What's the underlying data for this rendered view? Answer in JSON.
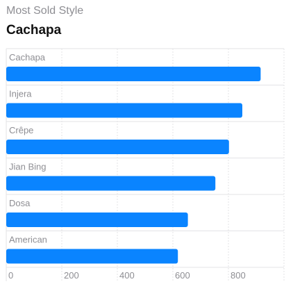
{
  "header": {
    "subtitle": "Most Sold Style",
    "title": "Cachapa"
  },
  "colors": {
    "bar": "#0a84ff",
    "grid": "#e3e3e6",
    "label": "#8e8e93"
  },
  "chart_data": {
    "type": "bar",
    "orientation": "horizontal",
    "title": "",
    "xlabel": "",
    "ylabel": "",
    "categories": [
      "Cachapa",
      "Injera",
      "Crêpe",
      "Jian Bing",
      "Dosa",
      "American"
    ],
    "values": [
      916,
      850,
      802,
      753,
      654,
      618
    ],
    "xlim": [
      0,
      1000
    ],
    "x_ticks": [
      0,
      200,
      400,
      600,
      800
    ],
    "grid": true,
    "legend": "none"
  }
}
